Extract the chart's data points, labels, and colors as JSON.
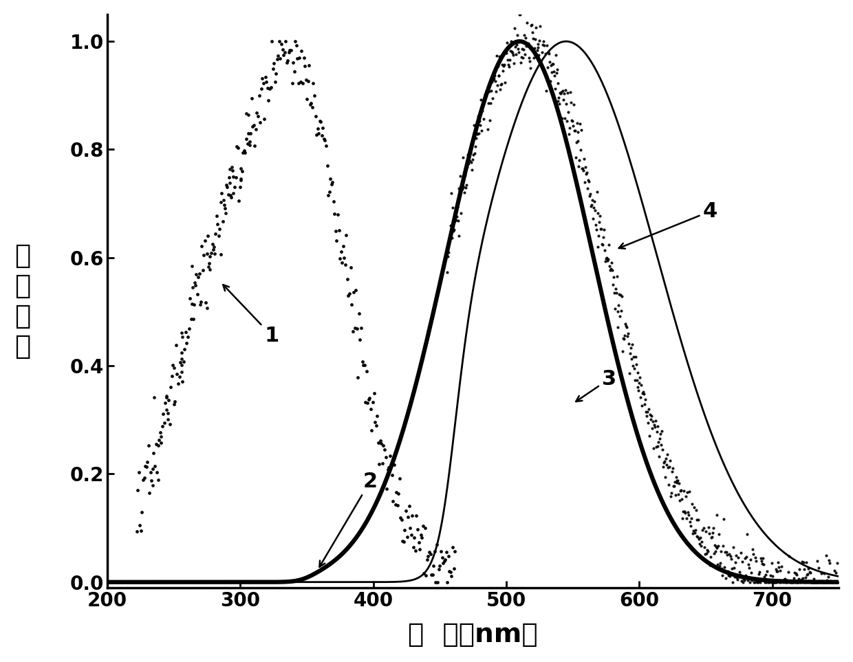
{
  "xlim": [
    200,
    750
  ],
  "ylim": [
    -0.01,
    1.05
  ],
  "xticks": [
    200,
    300,
    400,
    500,
    600,
    700
  ],
  "yticks": [
    0.0,
    0.2,
    0.4,
    0.6,
    0.8,
    1.0
  ],
  "ytick_labels": [
    "0.0",
    "0.2",
    "0.4",
    "0.6",
    "0.8",
    "1.0"
  ],
  "background_color": "#ffffff"
}
